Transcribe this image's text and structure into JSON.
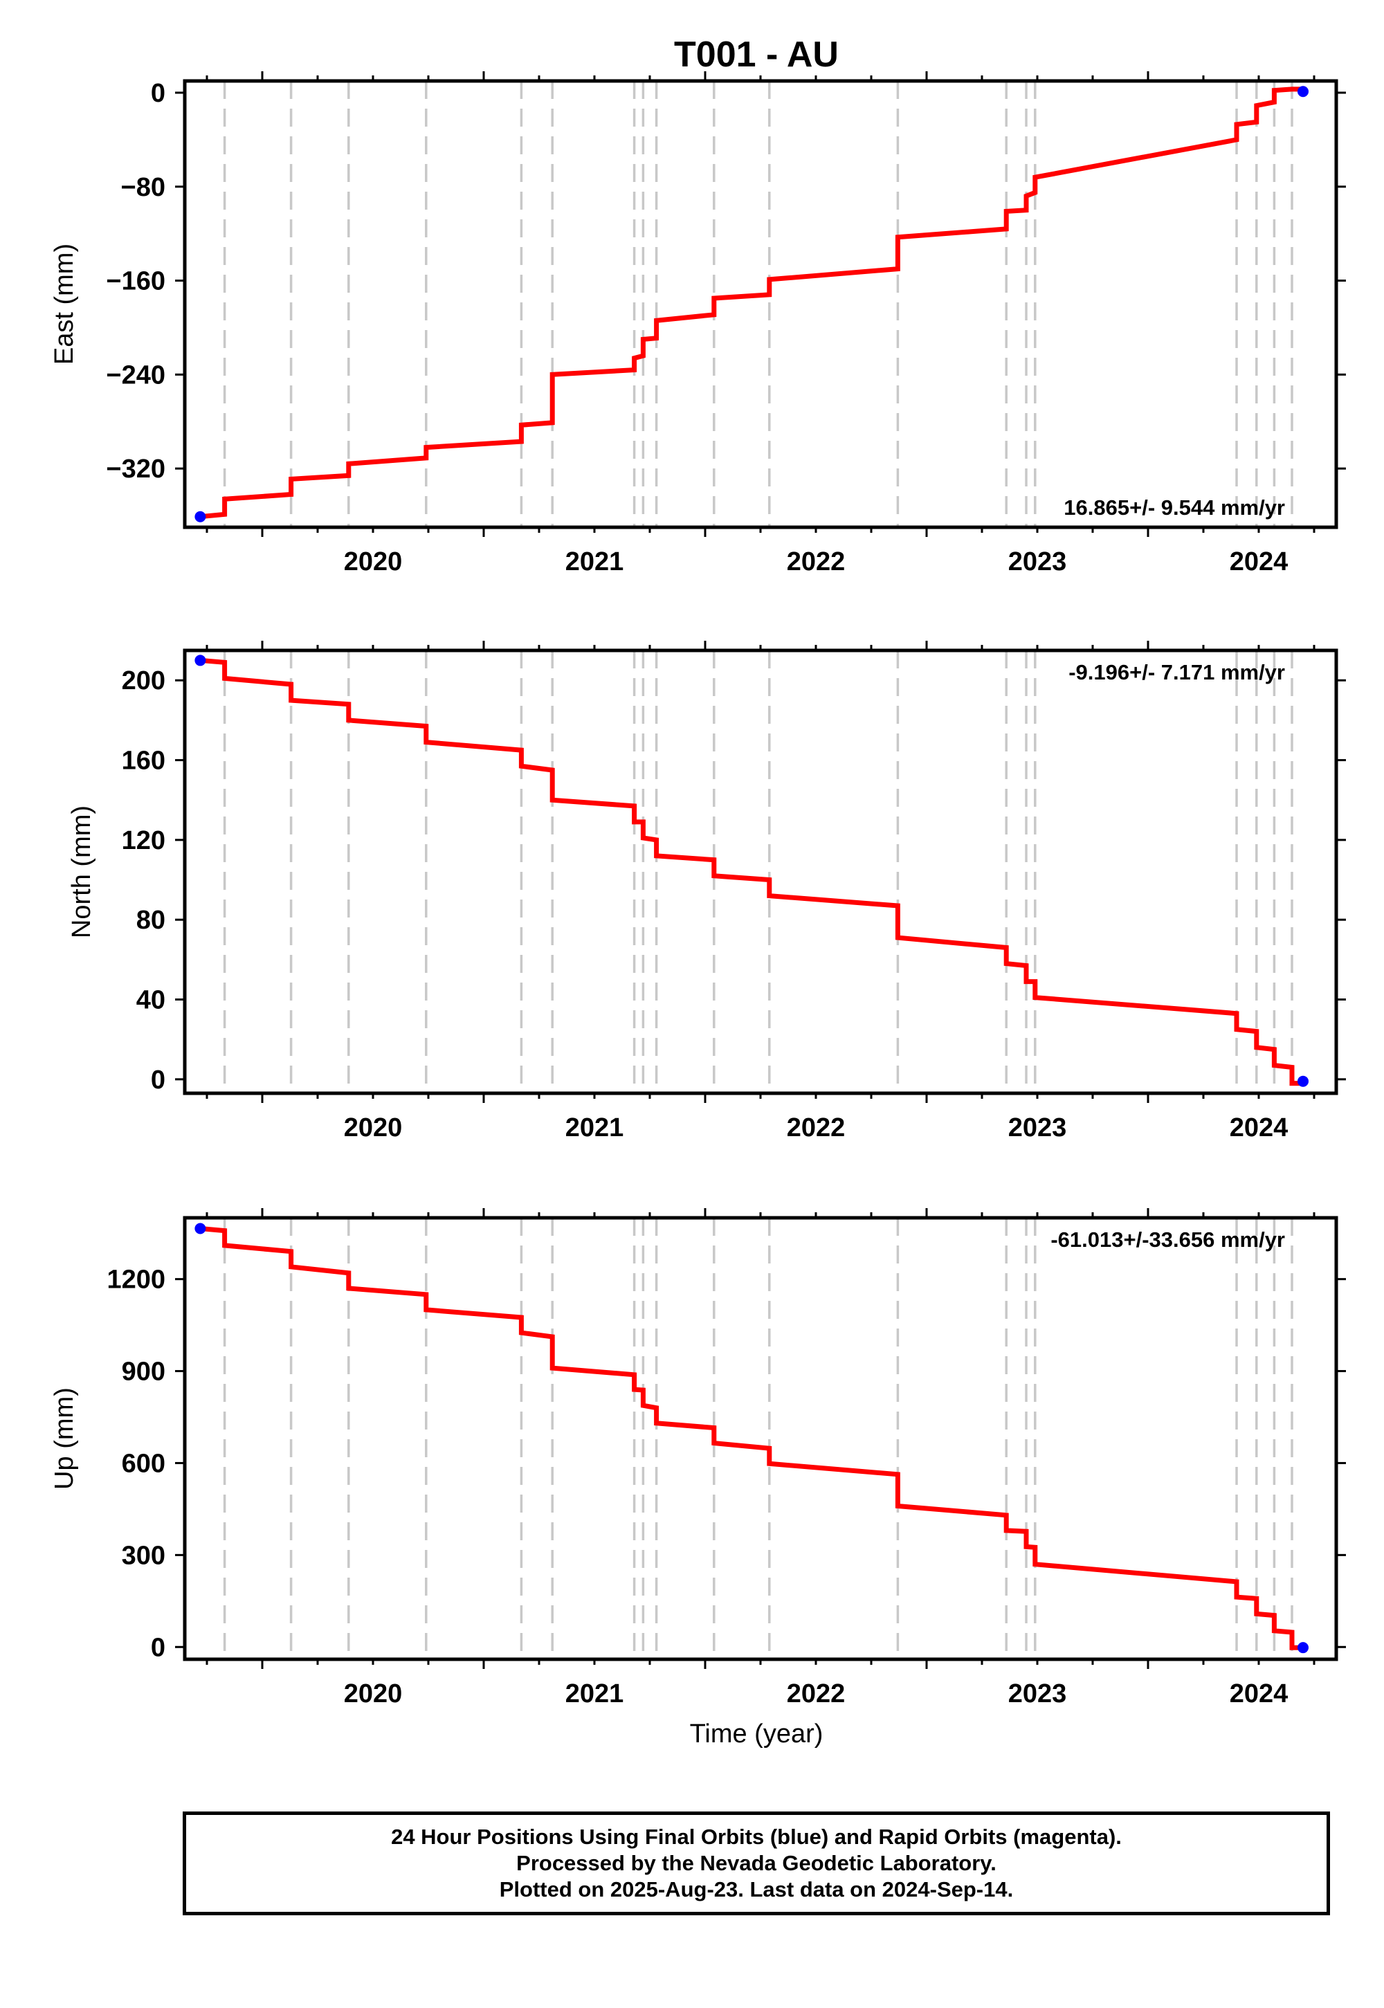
{
  "chart_data": {
    "title": "T001 - AU",
    "xlabel": "Time (year)",
    "xlim": [
      2019.65,
      2024.85
    ],
    "x_ticks": [
      "2020",
      "2021",
      "2022",
      "2023",
      "2024"
    ],
    "offset_epochs": [
      2019.83,
      2020.13,
      2020.39,
      2020.74,
      2021.17,
      2021.31,
      2021.68,
      2021.72,
      2021.78,
      2022.04,
      2022.29,
      2022.87,
      2023.36,
      2023.45,
      2023.49,
      2024.4,
      2024.49,
      2024.57,
      2024.65
    ],
    "x": [
      2019.72,
      2019.83,
      2019.83,
      2020.13,
      2020.13,
      2020.39,
      2020.39,
      2020.74,
      2020.74,
      2021.17,
      2021.17,
      2021.31,
      2021.31,
      2021.68,
      2021.68,
      2021.72,
      2021.72,
      2021.78,
      2021.78,
      2022.04,
      2022.04,
      2022.29,
      2022.29,
      2022.87,
      2022.87,
      2023.36,
      2023.36,
      2023.45,
      2023.45,
      2023.49,
      2023.49,
      2024.4,
      2024.4,
      2024.49,
      2024.49,
      2024.57,
      2024.57,
      2024.65,
      2024.65,
      2024.7
    ],
    "panels": [
      {
        "type": "line",
        "ylabel": "East (mm)",
        "ylim": [
          -370,
          10
        ],
        "y_ticks": [
          0,
          -80,
          -160,
          -240,
          -320
        ],
        "y_tick_labels": [
          "0",
          "−80",
          "−160",
          "−240",
          "−320"
        ],
        "rate_text": "16.865+/- 9.544 mm/yr",
        "rate_position": "bottom-right",
        "model": [
          -361,
          -359,
          -346,
          -342,
          -329,
          -326,
          -316,
          -311,
          -302,
          -297,
          -283,
          -281,
          -240,
          -236,
          -226,
          -224,
          -210,
          -209,
          -194,
          -189,
          -175,
          -172,
          -159,
          -150,
          -123,
          -116,
          -101,
          -100,
          -88,
          -85,
          -72,
          -40,
          -27,
          -25,
          -11,
          -8,
          2,
          3,
          3,
          3
        ],
        "observations": [
          {
            "x": 2019.72,
            "y": -361
          },
          {
            "x": 2024.7,
            "y": 1
          }
        ]
      },
      {
        "type": "line",
        "ylabel": "North (mm)",
        "ylim": [
          -7,
          215
        ],
        "y_ticks": [
          200,
          160,
          120,
          80,
          40,
          0
        ],
        "y_tick_labels": [
          "200",
          "160",
          "120",
          "80",
          "40",
          "0"
        ],
        "rate_text": "-9.196+/- 7.171 mm/yr",
        "rate_position": "top-right",
        "model": [
          210,
          209,
          201,
          198,
          190,
          188,
          180,
          177,
          169,
          165,
          157,
          155,
          140,
          137,
          129,
          129,
          121,
          120,
          112,
          110,
          102,
          100,
          92,
          87,
          71,
          66,
          58,
          57,
          49,
          49,
          41,
          33,
          25,
          24,
          16,
          15,
          7,
          6,
          -2,
          -2
        ],
        "observations": [
          {
            "x": 2019.72,
            "y": 210
          },
          {
            "x": 2024.7,
            "y": -1
          }
        ]
      },
      {
        "type": "line",
        "ylabel": "Up (mm)",
        "ylim": [
          -40,
          1400
        ],
        "y_ticks": [
          1200,
          900,
          600,
          300,
          0
        ],
        "y_tick_labels": [
          "1200",
          "900",
          "600",
          "300",
          "0"
        ],
        "rate_text": "-61.013+/-33.656 mm/yr",
        "rate_position": "top-right",
        "model": [
          1365,
          1358,
          1310,
          1290,
          1240,
          1220,
          1170,
          1150,
          1100,
          1075,
          1025,
          1012,
          910,
          888,
          840,
          838,
          788,
          780,
          730,
          715,
          665,
          648,
          598,
          563,
          460,
          430,
          380,
          377,
          327,
          325,
          270,
          213,
          163,
          158,
          108,
          103,
          53,
          48,
          -2,
          -2
        ],
        "observations": [
          {
            "x": 2019.72,
            "y": 1365
          },
          {
            "x": 2024.7,
            "y": -2
          }
        ]
      }
    ],
    "colors": {
      "model": "#ff0000",
      "observations": "#0000ff",
      "offsets": "#c8c8c8",
      "frame": "#000000"
    }
  },
  "footer": {
    "line1": "24 Hour Positions Using Final Orbits (blue) and Rapid Orbits (magenta).",
    "line2": "Processed by the Nevada Geodetic Laboratory.",
    "line3": "Plotted on 2025-Aug-23. Last data on 2024-Sep-14."
  }
}
